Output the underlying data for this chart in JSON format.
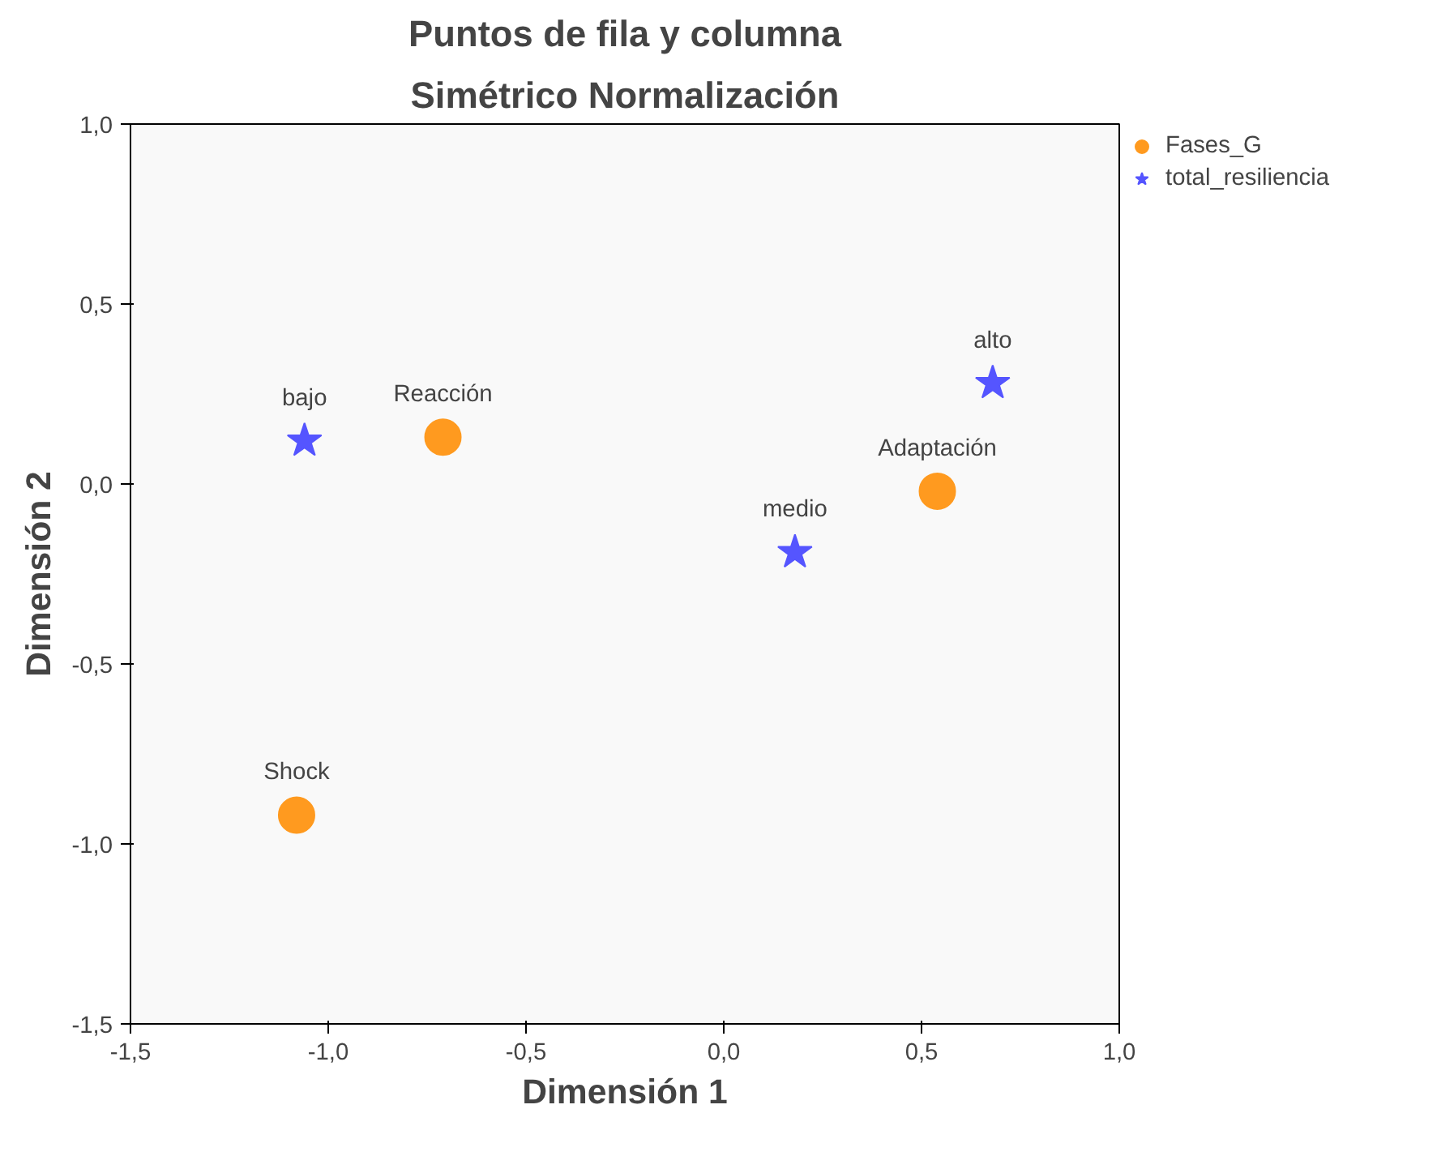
{
  "chart_data": {
    "type": "scatter",
    "title": "Puntos de fila y columna",
    "subtitle": "Simétrico Normalización",
    "xlabel": "Dimensión 1",
    "ylabel": "Dimensión 2",
    "xlim": [
      -1.5,
      1.0
    ],
    "ylim": [
      -1.5,
      1.0
    ],
    "xticks": [
      {
        "value": -1.5,
        "label": "-1,5"
      },
      {
        "value": -1.0,
        "label": "-1,0"
      },
      {
        "value": -0.5,
        "label": "-0,5"
      },
      {
        "value": 0.0,
        "label": "0,0"
      },
      {
        "value": 0.5,
        "label": "0,5"
      },
      {
        "value": 1.0,
        "label": "1,0"
      }
    ],
    "yticks": [
      {
        "value": -1.5,
        "label": "-1,5"
      },
      {
        "value": -1.0,
        "label": "-1,0"
      },
      {
        "value": -0.5,
        "label": "-0,5"
      },
      {
        "value": 0.0,
        "label": "0,0"
      },
      {
        "value": 0.5,
        "label": "0,5"
      },
      {
        "value": 1.0,
        "label": "1,0"
      }
    ],
    "grid": false,
    "legend": "top right",
    "series": [
      {
        "name": "Fases_G",
        "color": "#ff9a1f",
        "marker": "circle",
        "x": [
          -0.71,
          -1.08,
          0.54
        ],
        "values": [
          0.13,
          -0.92,
          -0.02
        ]
      },
      {
        "name": "total_resiliencia",
        "color": "#5555ff",
        "marker": "star",
        "x": [
          -1.06,
          0.18,
          0.68
        ],
        "values": [
          0.12,
          -0.19,
          0.28
        ]
      }
    ],
    "annotations": [
      {
        "text": "Reacción",
        "x": -0.71,
        "y": 0.13
      },
      {
        "text": "Shock",
        "x": -1.08,
        "y": -0.92
      },
      {
        "text": "Adaptación",
        "x": 0.54,
        "y": -0.02
      },
      {
        "text": "bajo",
        "x": -1.06,
        "y": 0.12
      },
      {
        "text": "medio",
        "x": 0.18,
        "y": -0.19
      },
      {
        "text": "alto",
        "x": 0.68,
        "y": 0.28
      }
    ]
  }
}
